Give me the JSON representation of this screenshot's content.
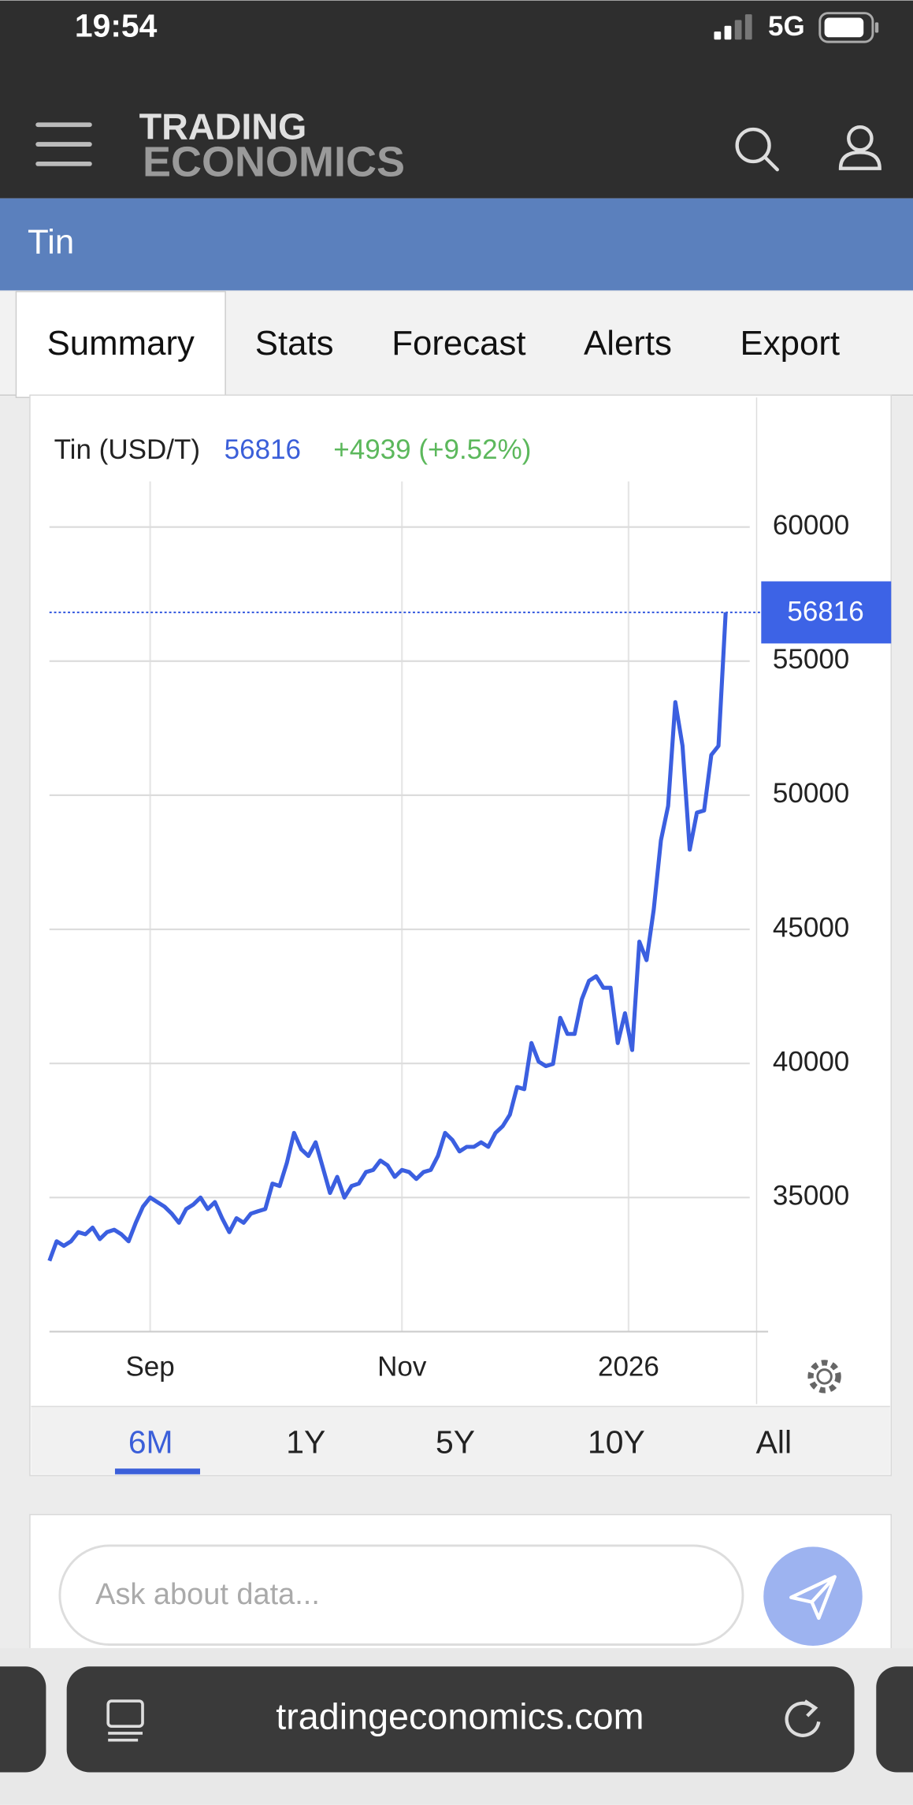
{
  "status_bar": {
    "time": "19:54",
    "network": "5G"
  },
  "header": {
    "brand_top": "TRADING",
    "brand_bottom": "ECONOMICS"
  },
  "page_title": "Tin",
  "tabs": [
    "Summary",
    "Stats",
    "Forecast",
    "Alerts",
    "Export"
  ],
  "chart_data": {
    "type": "line",
    "title": "Tin (USD/T)",
    "last_value": 56816,
    "change_label": "+4939 (+9.52%)",
    "series": [
      {
        "name": "Tin",
        "color": "#3b5fe0",
        "values": [
          32640,
          33370,
          33200,
          33370,
          33710,
          33630,
          33880,
          33450,
          33710,
          33800,
          33630,
          33370,
          34060,
          34660,
          35000,
          34830,
          34660,
          34400,
          34060,
          34570,
          34740,
          35000,
          34570,
          34830,
          34230,
          33710,
          34230,
          34060,
          34400,
          34490,
          34570,
          35520,
          35430,
          36290,
          37410,
          36800,
          36550,
          37060,
          36120,
          35170,
          35770,
          35000,
          35430,
          35520,
          35950,
          36030,
          36380,
          36200,
          35770,
          36030,
          35950,
          35690,
          35950,
          36030,
          36550,
          37410,
          37150,
          36720,
          36890,
          36890,
          37060,
          36890,
          37410,
          37660,
          38090,
          39120,
          39040,
          40760,
          40070,
          39900,
          39980,
          41700,
          41100,
          41100,
          42390,
          43080,
          43250,
          42820,
          42820,
          40760,
          41870,
          40500,
          44540,
          43850,
          45740,
          48320,
          49600,
          53470,
          51840,
          47970,
          49350,
          49430,
          51500,
          51840,
          56816
        ]
      }
    ],
    "xlim": [
      0,
      98.3
    ],
    "xticks": [
      {
        "value": 14,
        "label": "Sep"
      },
      {
        "value": 49,
        "label": "Nov"
      },
      {
        "value": 80.5,
        "label": "2026"
      }
    ],
    "ylim": [
      30000,
      61700
    ],
    "yticks": [
      35000,
      40000,
      45000,
      50000,
      55000,
      60000
    ],
    "grid": true
  },
  "ranges": [
    "6M",
    "1Y",
    "5Y",
    "10Y",
    "All"
  ],
  "active_range": 0,
  "chat": {
    "placeholder": "Ask about data..."
  },
  "browser": {
    "url": "tradingeconomics.com"
  }
}
